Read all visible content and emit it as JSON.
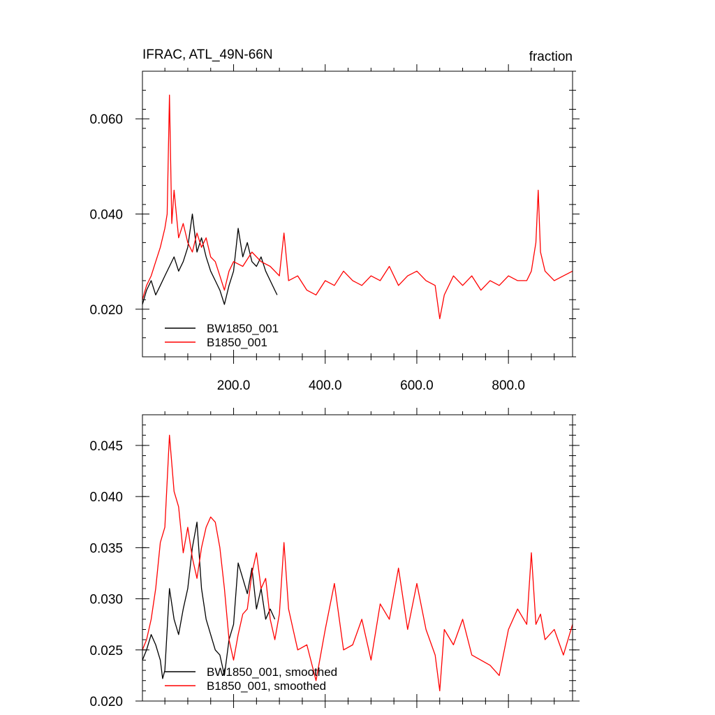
{
  "chart_data": [
    {
      "type": "line",
      "title_left": "IFRAC, ATL_49N-66N",
      "title_right": "fraction",
      "xlim": [
        1,
        940
      ],
      "ylim": [
        0.01,
        0.07
      ],
      "yticks": [
        0.02,
        0.04,
        0.06
      ],
      "ytick_labels": [
        "0.020",
        "0.040",
        "0.060"
      ],
      "xticks": [
        200,
        400,
        600,
        800
      ],
      "xtick_labels": [
        "200.0",
        "400.0",
        "600.0",
        "800.0"
      ],
      "legend": [
        "BW1850_001",
        "B1850_001"
      ],
      "legend_placement": "bottom-left",
      "series": [
        {
          "name": "BW1850_001",
          "color": "#000000",
          "x": [
            1,
            10,
            20,
            30,
            40,
            50,
            60,
            70,
            80,
            90,
            100,
            110,
            120,
            130,
            140,
            150,
            160,
            170,
            180,
            190,
            200,
            210,
            220,
            230,
            240,
            250,
            260,
            270,
            280,
            290,
            295
          ],
          "values": [
            0.021,
            0.024,
            0.026,
            0.023,
            0.025,
            0.027,
            0.029,
            0.031,
            0.028,
            0.03,
            0.033,
            0.04,
            0.032,
            0.035,
            0.031,
            0.028,
            0.026,
            0.024,
            0.021,
            0.025,
            0.028,
            0.037,
            0.031,
            0.034,
            0.03,
            0.029,
            0.031,
            0.028,
            0.026,
            0.024,
            0.023
          ]
        },
        {
          "name": "B1850_001",
          "color": "#ff0000",
          "x": [
            1,
            10,
            20,
            30,
            40,
            50,
            55,
            60,
            65,
            70,
            80,
            90,
            100,
            110,
            120,
            130,
            140,
            150,
            160,
            170,
            180,
            190,
            200,
            220,
            240,
            260,
            280,
            300,
            310,
            320,
            340,
            360,
            380,
            400,
            420,
            440,
            460,
            480,
            500,
            520,
            540,
            560,
            580,
            600,
            620,
            640,
            650,
            660,
            680,
            700,
            720,
            740,
            760,
            780,
            800,
            820,
            840,
            850,
            860,
            865,
            870,
            880,
            900,
            920,
            940
          ],
          "values": [
            0.022,
            0.025,
            0.027,
            0.03,
            0.033,
            0.037,
            0.04,
            0.065,
            0.038,
            0.045,
            0.035,
            0.038,
            0.034,
            0.032,
            0.036,
            0.033,
            0.035,
            0.031,
            0.03,
            0.027,
            0.024,
            0.028,
            0.03,
            0.029,
            0.032,
            0.03,
            0.029,
            0.027,
            0.036,
            0.026,
            0.027,
            0.024,
            0.023,
            0.026,
            0.025,
            0.028,
            0.026,
            0.025,
            0.027,
            0.026,
            0.029,
            0.025,
            0.027,
            0.028,
            0.026,
            0.025,
            0.018,
            0.023,
            0.027,
            0.025,
            0.027,
            0.024,
            0.026,
            0.025,
            0.027,
            0.026,
            0.026,
            0.028,
            0.034,
            0.045,
            0.032,
            0.028,
            0.026,
            0.027,
            0.028
          ]
        }
      ]
    },
    {
      "type": "line",
      "title_left": "",
      "title_right": "",
      "xlim": [
        1,
        940
      ],
      "ylim": [
        0.02,
        0.048
      ],
      "yticks": [
        0.02,
        0.025,
        0.03,
        0.035,
        0.04,
        0.045
      ],
      "ytick_labels": [
        "0.020",
        "0.025",
        "0.030",
        "0.035",
        "0.040",
        "0.045"
      ],
      "xticks": [
        200,
        400,
        600,
        800
      ],
      "xtick_labels": [
        "",
        "",
        "",
        ""
      ],
      "legend": [
        "BW1850_001, smoothed",
        "B1850_001, smoothed"
      ],
      "legend_placement": "bottom-left",
      "series": [
        {
          "name": "BW1850_001, smoothed",
          "color": "#000000",
          "x": [
            1,
            10,
            20,
            30,
            40,
            45,
            50,
            60,
            70,
            80,
            90,
            100,
            110,
            120,
            130,
            140,
            150,
            160,
            170,
            180,
            190,
            200,
            210,
            220,
            230,
            240,
            250,
            260,
            270,
            280,
            290
          ],
          "values": [
            0.024,
            0.025,
            0.0265,
            0.0255,
            0.024,
            0.0222,
            0.023,
            0.031,
            0.028,
            0.0265,
            0.029,
            0.031,
            0.035,
            0.0375,
            0.031,
            0.028,
            0.0265,
            0.025,
            0.0245,
            0.0225,
            0.026,
            0.0275,
            0.0335,
            0.032,
            0.0305,
            0.033,
            0.029,
            0.031,
            0.028,
            0.029,
            0.028
          ]
        },
        {
          "name": "B1850_001, smoothed",
          "color": "#ff0000",
          "x": [
            1,
            10,
            20,
            30,
            40,
            50,
            60,
            70,
            80,
            90,
            100,
            110,
            120,
            130,
            140,
            150,
            160,
            170,
            180,
            190,
            200,
            210,
            220,
            230,
            240,
            250,
            260,
            270,
            280,
            290,
            300,
            310,
            320,
            330,
            340,
            360,
            380,
            400,
            420,
            440,
            460,
            480,
            500,
            520,
            540,
            560,
            580,
            600,
            620,
            640,
            650,
            660,
            680,
            700,
            720,
            740,
            760,
            780,
            800,
            820,
            840,
            850,
            860,
            870,
            880,
            900,
            920,
            940
          ],
          "values": [
            0.025,
            0.026,
            0.028,
            0.031,
            0.0355,
            0.037,
            0.046,
            0.0405,
            0.039,
            0.0345,
            0.037,
            0.034,
            0.032,
            0.035,
            0.037,
            0.038,
            0.0375,
            0.035,
            0.031,
            0.026,
            0.024,
            0.0265,
            0.0285,
            0.029,
            0.0325,
            0.0345,
            0.031,
            0.032,
            0.028,
            0.026,
            0.0285,
            0.0355,
            0.029,
            0.027,
            0.025,
            0.0255,
            0.022,
            0.027,
            0.0315,
            0.025,
            0.0255,
            0.028,
            0.024,
            0.0295,
            0.028,
            0.033,
            0.027,
            0.0315,
            0.027,
            0.0245,
            0.021,
            0.027,
            0.0255,
            0.028,
            0.0245,
            0.024,
            0.0235,
            0.0225,
            0.027,
            0.029,
            0.0275,
            0.0345,
            0.0275,
            0.0285,
            0.026,
            0.027,
            0.0245,
            0.0275
          ]
        }
      ]
    }
  ]
}
